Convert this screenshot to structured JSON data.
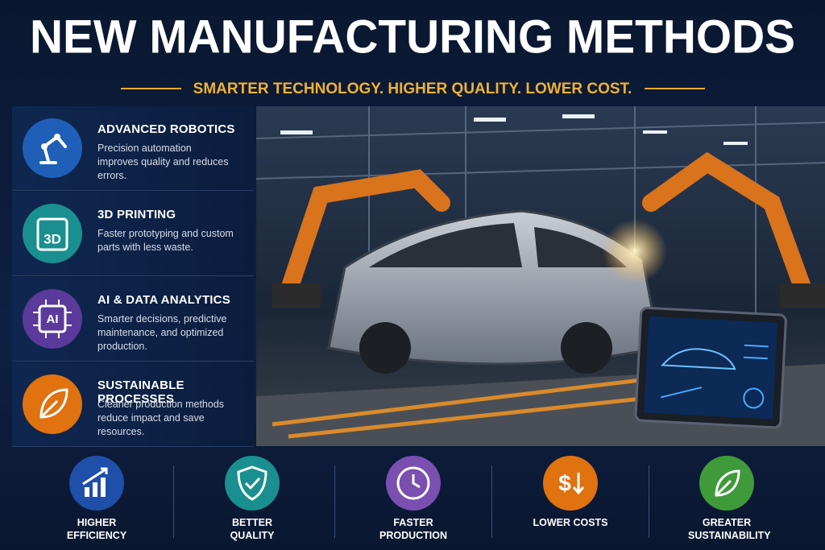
{
  "header": {
    "title": "NEW MANUFACTURING METHODS",
    "subtitle": "SMARTER TECHNOLOGY. HIGHER QUALITY. LOWER COST."
  },
  "features": [
    {
      "title": "ADVANCED ROBOTICS",
      "text": "Precision automation improves quality and reduces errors."
    },
    {
      "title": "3D PRINTING",
      "icon_text": "3D",
      "text": "Faster prototyping and custom parts with less waste."
    },
    {
      "title": "AI & DATA ANALYTICS",
      "icon_text": "AI",
      "text": "Smarter decisions, predictive maintenance, and optimized production."
    },
    {
      "title": "SUSTAINABLE PROCESSES",
      "text": "Cleaner production methods reduce impact and save resources."
    }
  ],
  "benefits": [
    {
      "label": "HIGHER EFFICIENCY"
    },
    {
      "label": "BETTER QUALITY"
    },
    {
      "label": "FASTER PRODUCTION"
    },
    {
      "label": "LOWER COSTS",
      "icon_text": "$"
    },
    {
      "label": "GREATER SUSTAINABILITY"
    }
  ]
}
